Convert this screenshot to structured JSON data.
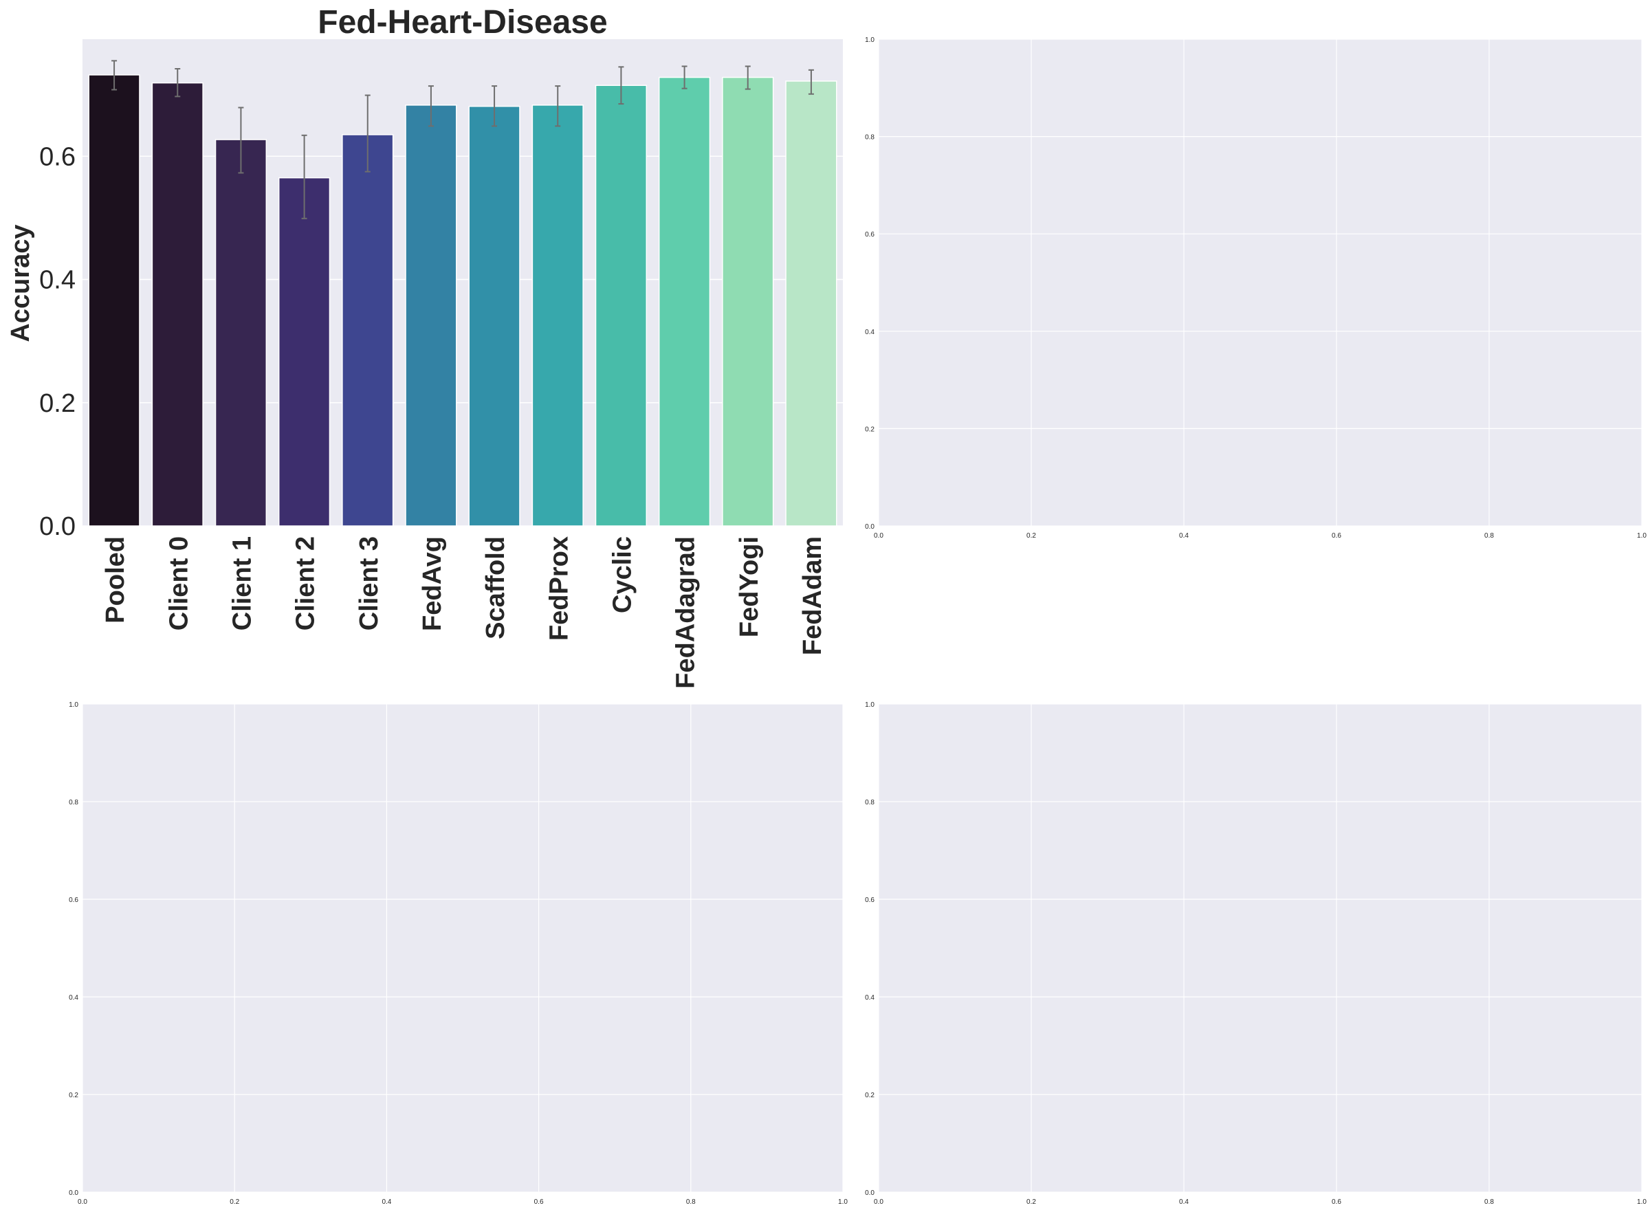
{
  "chart_data": [
    {
      "type": "bar",
      "title": "Fed-Heart-Disease",
      "xlabel": "",
      "ylabel": "Accuracy",
      "ylim": [
        0,
        0.79
      ],
      "yticks": [
        "0.0",
        "0.2",
        "0.4",
        "0.6"
      ],
      "grid": true,
      "categories": [
        "Pooled",
        "Client 0",
        "Client 1",
        "Client 2",
        "Client 3",
        "FedAvg",
        "Scaffold",
        "FedProx",
        "Cyclic",
        "FedAdagrad",
        "FedYogi",
        "FedAdam"
      ],
      "values": [
        0.732,
        0.719,
        0.627,
        0.565,
        0.635,
        0.683,
        0.681,
        0.683,
        0.715,
        0.728,
        0.728,
        0.722
      ],
      "error_low": [
        0.708,
        0.697,
        0.573,
        0.499,
        0.575,
        0.649,
        0.649,
        0.649,
        0.685,
        0.71,
        0.709,
        0.701
      ],
      "error_high": [
        0.755,
        0.742,
        0.679,
        0.634,
        0.699,
        0.714,
        0.714,
        0.714,
        0.745,
        0.746,
        0.746,
        0.74
      ],
      "colors": [
        "#1c111e",
        "#2d1c39",
        "#372651",
        "#3d2e6d",
        "#3e4690",
        "#3382a4",
        "#3190a8",
        "#37a8ac",
        "#48bca9",
        "#5fcdac",
        "#8fdcb2",
        "#b8e6c7"
      ]
    },
    {
      "type": "empty",
      "xlim": [
        0,
        1
      ],
      "ylim": [
        0,
        1
      ],
      "xticks": [
        "0.0",
        "0.2",
        "0.4",
        "0.6",
        "0.8",
        "1.0"
      ],
      "yticks": [
        "0.0",
        "0.2",
        "0.4",
        "0.6",
        "0.8",
        "1.0"
      ],
      "grid": true
    },
    {
      "type": "empty",
      "xlim": [
        0,
        1
      ],
      "ylim": [
        0,
        1
      ],
      "xticks": [
        "0.0",
        "0.2",
        "0.4",
        "0.6",
        "0.8",
        "1.0"
      ],
      "yticks": [
        "0.0",
        "0.2",
        "0.4",
        "0.6",
        "0.8",
        "1.0"
      ],
      "grid": true
    },
    {
      "type": "empty",
      "xlim": [
        0,
        1
      ],
      "ylim": [
        0,
        1
      ],
      "xticks": [
        "0.0",
        "0.2",
        "0.4",
        "0.6",
        "0.8",
        "1.0"
      ],
      "yticks": [
        "0.0",
        "0.2",
        "0.4",
        "0.6",
        "0.8",
        "1.0"
      ],
      "grid": true
    }
  ],
  "colors": {
    "axes_background": "#eaeaf2",
    "grid": "#ffffff",
    "text": "#262626",
    "error_bar": "#6e6e6e"
  }
}
